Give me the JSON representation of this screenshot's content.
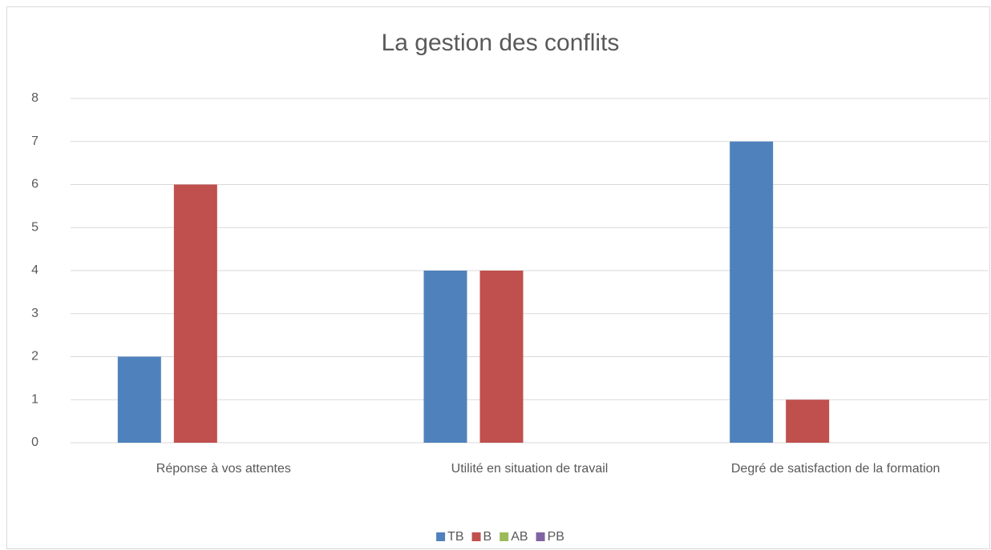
{
  "chart_data": {
    "type": "bar",
    "title": "La gestion des conflits",
    "categories": [
      "Réponse à vos attentes",
      "Utilité en situation de travail",
      "Degré de satisfaction de la formation"
    ],
    "series": [
      {
        "name": "TB",
        "color": "#4f81bd",
        "values": [
          2,
          4,
          7
        ]
      },
      {
        "name": "B",
        "color": "#c0504d",
        "values": [
          6,
          4,
          1
        ]
      },
      {
        "name": "AB",
        "color": "#9bbb59",
        "values": [
          0,
          0,
          0
        ]
      },
      {
        "name": "PB",
        "color": "#8064a2",
        "values": [
          0,
          0,
          0
        ]
      }
    ],
    "ylim": [
      0,
      8
    ],
    "yticks": [
      0,
      1,
      2,
      3,
      4,
      5,
      6,
      7,
      8
    ],
    "grid": true,
    "legend": "bottom"
  }
}
